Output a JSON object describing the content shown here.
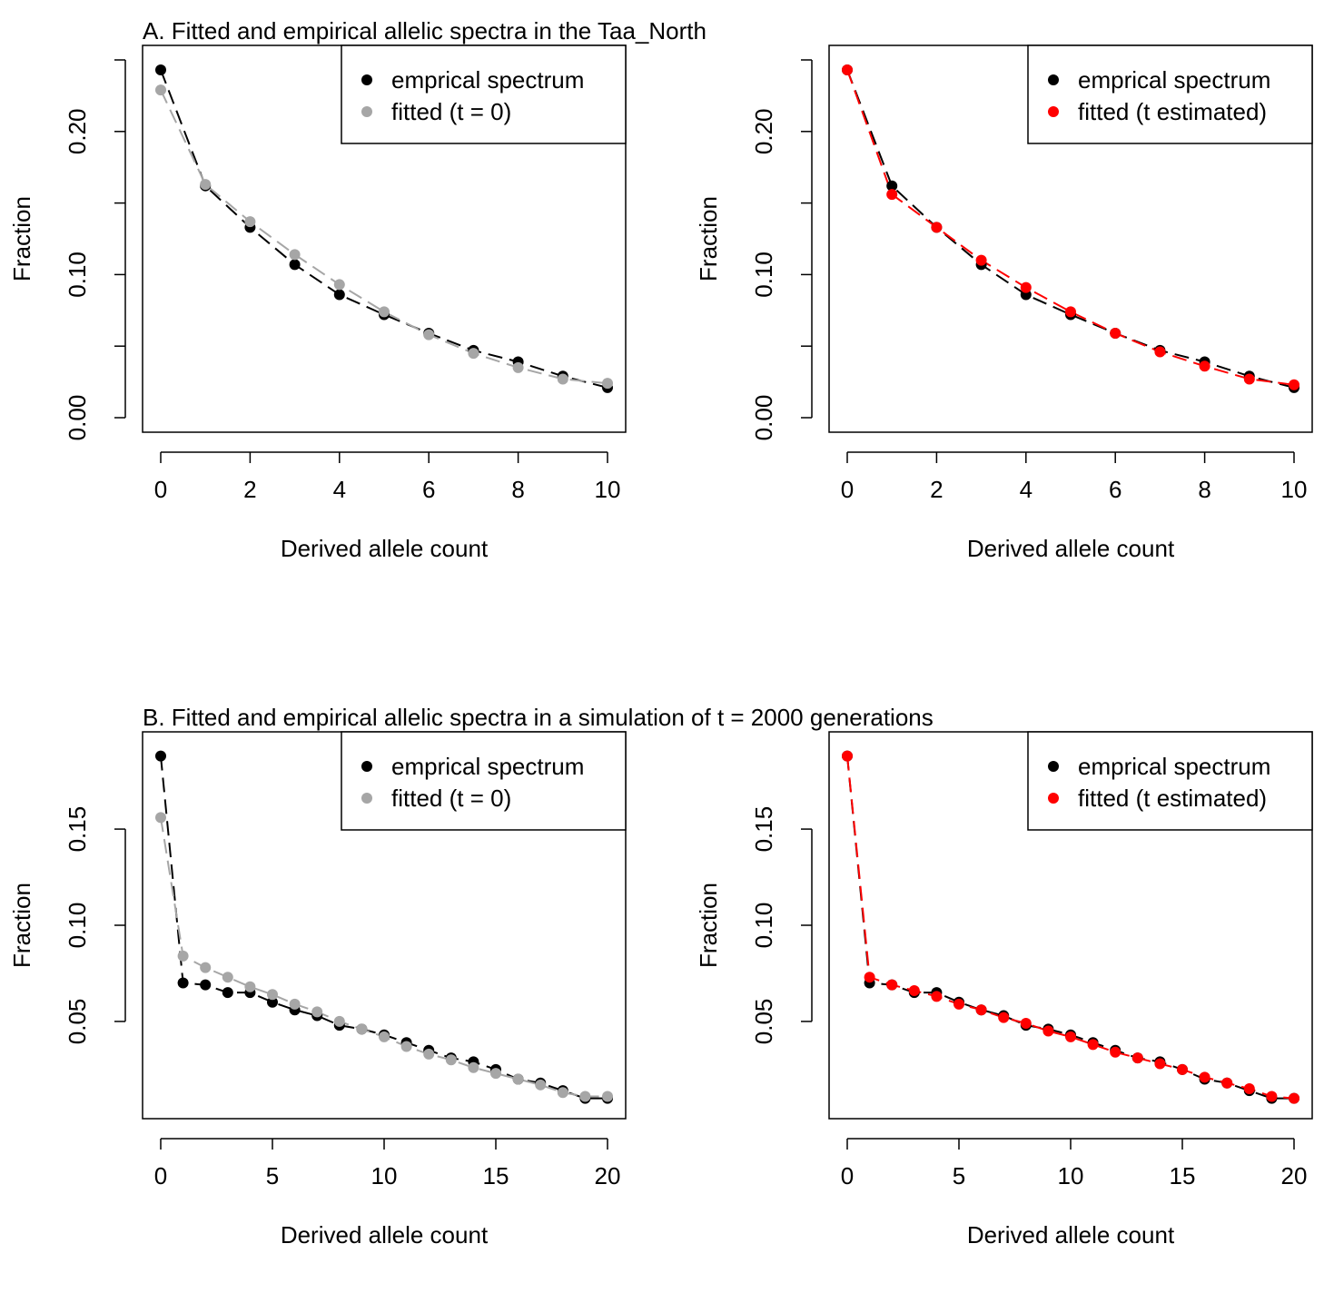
{
  "panel_titles": {
    "A": "A. Fitted and empirical allelic spectra in the Taa_North",
    "B": "B. Fitted and empirical allelic spectra in a simulation of t = 2000 generations"
  },
  "colors": {
    "empirical": "#000000",
    "fitted_t0": "#a6a6a6",
    "fitted_t_est": "#ff0000"
  },
  "chart_data": [
    {
      "type": "line",
      "panel": "A-left",
      "xlabel": "Derived allele count",
      "ylabel": "Fraction",
      "xlim": [
        0,
        10
      ],
      "ylim": [
        0,
        0.25
      ],
      "x_ticks": [
        0,
        2,
        4,
        6,
        8,
        10
      ],
      "y_ticks": [
        0.0,
        0.05,
        0.1,
        0.15,
        0.2,
        0.25
      ],
      "y_tick_labels": [
        "0.00",
        "",
        "0.10",
        "",
        "0.20",
        ""
      ],
      "legend": "top-right",
      "series": [
        {
          "name": "emprical spectrum",
          "color": "#000000",
          "x": [
            0,
            1,
            2,
            3,
            4,
            5,
            6,
            7,
            8,
            9,
            10
          ],
          "values": [
            0.243,
            0.162,
            0.133,
            0.107,
            0.086,
            0.072,
            0.059,
            0.047,
            0.039,
            0.029,
            0.021
          ]
        },
        {
          "name": "fitted (t = 0)",
          "color": "#a6a6a6",
          "x": [
            0,
            1,
            2,
            3,
            4,
            5,
            6,
            7,
            8,
            9,
            10
          ],
          "values": [
            0.229,
            0.163,
            0.137,
            0.114,
            0.093,
            0.074,
            0.058,
            0.045,
            0.035,
            0.027,
            0.024
          ]
        }
      ]
    },
    {
      "type": "line",
      "panel": "A-right",
      "xlabel": "Derived allele count",
      "ylabel": "Fraction",
      "xlim": [
        0,
        10
      ],
      "ylim": [
        0,
        0.25
      ],
      "x_ticks": [
        0,
        2,
        4,
        6,
        8,
        10
      ],
      "y_ticks": [
        0.0,
        0.05,
        0.1,
        0.15,
        0.2,
        0.25
      ],
      "y_tick_labels": [
        "0.00",
        "",
        "0.10",
        "",
        "0.20",
        ""
      ],
      "legend": "top-right",
      "series": [
        {
          "name": "emprical spectrum",
          "color": "#000000",
          "x": [
            0,
            1,
            2,
            3,
            4,
            5,
            6,
            7,
            8,
            9,
            10
          ],
          "values": [
            0.243,
            0.162,
            0.133,
            0.107,
            0.086,
            0.072,
            0.059,
            0.047,
            0.039,
            0.029,
            0.021
          ]
        },
        {
          "name": "fitted (t estimated)",
          "color": "#ff0000",
          "x": [
            0,
            1,
            2,
            3,
            4,
            5,
            6,
            7,
            8,
            9,
            10
          ],
          "values": [
            0.243,
            0.156,
            0.133,
            0.11,
            0.091,
            0.074,
            0.059,
            0.046,
            0.036,
            0.027,
            0.023
          ]
        }
      ]
    },
    {
      "type": "line",
      "panel": "B-left",
      "xlabel": "Derived allele count",
      "ylabel": "Fraction",
      "xlim": [
        0,
        20
      ],
      "ylim": [
        0.007,
        0.193
      ],
      "x_ticks": [
        0,
        5,
        10,
        15,
        20
      ],
      "y_ticks": [
        0.05,
        0.1,
        0.15
      ],
      "y_tick_labels": [
        "0.05",
        "0.10",
        "0.15"
      ],
      "legend": "top-right",
      "series": [
        {
          "name": "emprical spectrum",
          "color": "#000000",
          "x": [
            0,
            1,
            2,
            3,
            4,
            5,
            6,
            7,
            8,
            9,
            10,
            11,
            12,
            13,
            14,
            15,
            16,
            17,
            18,
            19,
            20
          ],
          "values": [
            0.188,
            0.07,
            0.069,
            0.065,
            0.065,
            0.06,
            0.056,
            0.053,
            0.048,
            0.046,
            0.043,
            0.039,
            0.035,
            0.031,
            0.029,
            0.025,
            0.02,
            0.018,
            0.014,
            0.01,
            0.01
          ]
        },
        {
          "name": "fitted (t = 0)",
          "color": "#a6a6a6",
          "x": [
            0,
            1,
            2,
            3,
            4,
            5,
            6,
            7,
            8,
            9,
            10,
            11,
            12,
            13,
            14,
            15,
            16,
            17,
            18,
            19,
            20
          ],
          "values": [
            0.156,
            0.084,
            0.078,
            0.073,
            0.068,
            0.064,
            0.059,
            0.055,
            0.05,
            0.046,
            0.042,
            0.037,
            0.033,
            0.03,
            0.026,
            0.023,
            0.02,
            0.017,
            0.013,
            0.011,
            0.011
          ]
        }
      ]
    },
    {
      "type": "line",
      "panel": "B-right",
      "xlabel": "Derived allele count",
      "ylabel": "Fraction",
      "xlim": [
        0,
        20
      ],
      "ylim": [
        0.007,
        0.193
      ],
      "x_ticks": [
        0,
        5,
        10,
        15,
        20
      ],
      "y_ticks": [
        0.05,
        0.1,
        0.15
      ],
      "y_tick_labels": [
        "0.05",
        "0.10",
        "0.15"
      ],
      "legend": "top-right",
      "series": [
        {
          "name": "emprical spectrum",
          "color": "#000000",
          "x": [
            0,
            1,
            2,
            3,
            4,
            5,
            6,
            7,
            8,
            9,
            10,
            11,
            12,
            13,
            14,
            15,
            16,
            17,
            18,
            19,
            20
          ],
          "values": [
            0.188,
            0.07,
            0.069,
            0.065,
            0.065,
            0.06,
            0.056,
            0.053,
            0.048,
            0.046,
            0.043,
            0.039,
            0.035,
            0.031,
            0.029,
            0.025,
            0.02,
            0.018,
            0.014,
            0.01,
            0.01
          ]
        },
        {
          "name": "fitted (t estimated)",
          "color": "#ff0000",
          "x": [
            0,
            1,
            2,
            3,
            4,
            5,
            6,
            7,
            8,
            9,
            10,
            11,
            12,
            13,
            14,
            15,
            16,
            17,
            18,
            19,
            20
          ],
          "values": [
            0.188,
            0.073,
            0.069,
            0.066,
            0.063,
            0.059,
            0.056,
            0.052,
            0.049,
            0.045,
            0.042,
            0.038,
            0.034,
            0.031,
            0.028,
            0.025,
            0.021,
            0.018,
            0.015,
            0.011,
            0.01
          ]
        }
      ]
    }
  ]
}
